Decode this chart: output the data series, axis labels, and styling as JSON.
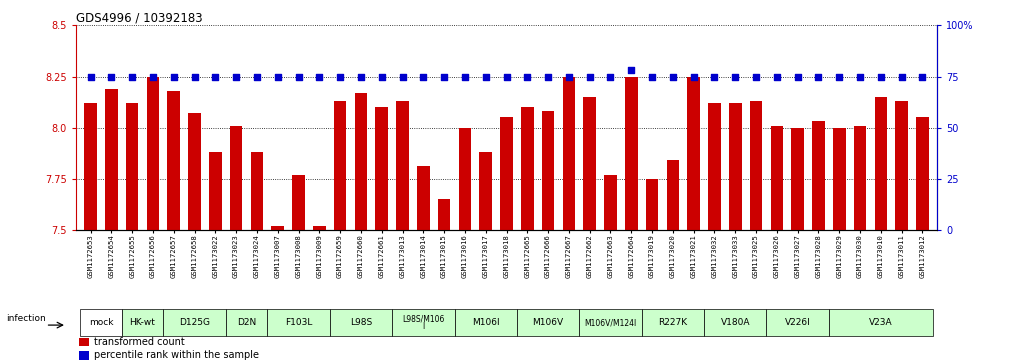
{
  "title": "GDS4996 / 10392183",
  "samples": [
    "GSM1172653",
    "GSM1172654",
    "GSM1172655",
    "GSM1172656",
    "GSM1172657",
    "GSM1172658",
    "GSM1173022",
    "GSM1173023",
    "GSM1173024",
    "GSM1173007",
    "GSM1173008",
    "GSM1173009",
    "GSM1172659",
    "GSM1172660",
    "GSM1172661",
    "GSM1173013",
    "GSM1173014",
    "GSM1173015",
    "GSM1173016",
    "GSM1173017",
    "GSM1173018",
    "GSM1172665",
    "GSM1172666",
    "GSM1172667",
    "GSM1172662",
    "GSM1172663",
    "GSM1172664",
    "GSM1173019",
    "GSM1173020",
    "GSM1173021",
    "GSM1173032",
    "GSM1173033",
    "GSM1173025",
    "GSM1173026",
    "GSM1173027",
    "GSM1173028",
    "GSM1173029",
    "GSM1173030",
    "GSM1173010",
    "GSM1173011",
    "GSM1173012"
  ],
  "bar_values": [
    8.12,
    8.19,
    8.12,
    8.25,
    8.18,
    8.07,
    7.88,
    8.01,
    7.88,
    7.52,
    7.77,
    7.52,
    8.13,
    8.17,
    8.1,
    8.13,
    7.81,
    7.65,
    8.0,
    7.88,
    8.05,
    8.1,
    8.08,
    8.25,
    8.15,
    7.77,
    8.25,
    7.75,
    7.84,
    8.25,
    8.12,
    8.12,
    8.13,
    8.01,
    8.0,
    8.03,
    8.0,
    8.01,
    8.15,
    8.13,
    8.05
  ],
  "percentile_values": [
    75,
    75,
    75,
    75,
    75,
    75,
    75,
    75,
    75,
    75,
    75,
    75,
    75,
    75,
    75,
    75,
    75,
    75,
    75,
    75,
    75,
    75,
    75,
    75,
    75,
    75,
    78,
    75,
    75,
    75,
    75,
    75,
    75,
    75,
    75,
    75,
    75,
    75,
    75,
    75,
    75
  ],
  "groups": [
    {
      "label": "mock",
      "start": 0,
      "end": 2,
      "color": "#ffffff"
    },
    {
      "label": "HK-wt",
      "start": 2,
      "end": 4,
      "color": "#ccffcc"
    },
    {
      "label": "D125G",
      "start": 4,
      "end": 7,
      "color": "#ccffcc"
    },
    {
      "label": "D2N",
      "start": 7,
      "end": 9,
      "color": "#ccffcc"
    },
    {
      "label": "F103L",
      "start": 9,
      "end": 12,
      "color": "#ccffcc"
    },
    {
      "label": "L98S",
      "start": 12,
      "end": 15,
      "color": "#ccffcc"
    },
    {
      "label": "L98S/M106\nI",
      "start": 15,
      "end": 18,
      "color": "#ccffcc"
    },
    {
      "label": "M106I",
      "start": 18,
      "end": 21,
      "color": "#ccffcc"
    },
    {
      "label": "M106V",
      "start": 21,
      "end": 24,
      "color": "#ccffcc"
    },
    {
      "label": "M106V/M124I",
      "start": 24,
      "end": 27,
      "color": "#ccffcc"
    },
    {
      "label": "R227K",
      "start": 27,
      "end": 30,
      "color": "#ccffcc"
    },
    {
      "label": "V180A",
      "start": 30,
      "end": 33,
      "color": "#ccffcc"
    },
    {
      "label": "V226I",
      "start": 33,
      "end": 36,
      "color": "#ccffcc"
    },
    {
      "label": "V23A",
      "start": 36,
      "end": 41,
      "color": "#ccffcc"
    }
  ],
  "ylim_left": [
    7.5,
    8.5
  ],
  "ylim_right": [
    0,
    100
  ],
  "yticks_left": [
    7.5,
    7.75,
    8.0,
    8.25,
    8.5
  ],
  "yticks_right": [
    0,
    25,
    50,
    75,
    100
  ],
  "bar_color": "#cc0000",
  "percentile_color": "#0000cc",
  "plot_bg_color": "#ffffff",
  "legend_bar_label": "transformed count",
  "legend_pct_label": "percentile rank within the sample",
  "infection_label": "infection"
}
